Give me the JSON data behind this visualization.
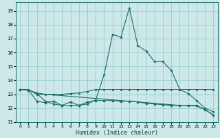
{
  "xlabel": "Humidex (Indice chaleur)",
  "bg_color": "#cce8e8",
  "grid_color": "#99cccc",
  "line_color": "#1a6b6b",
  "xlim": [
    -0.5,
    23.5
  ],
  "ylim": [
    11,
    19.6
  ],
  "yticks": [
    11,
    12,
    13,
    14,
    15,
    16,
    17,
    18,
    19
  ],
  "xticks": [
    0,
    1,
    2,
    3,
    4,
    5,
    6,
    7,
    8,
    9,
    10,
    11,
    12,
    13,
    14,
    15,
    16,
    17,
    18,
    19,
    20,
    21,
    22,
    23
  ],
  "line1_x": [
    0,
    1,
    2,
    3,
    4,
    5,
    6,
    7,
    8,
    9,
    10,
    11,
    12,
    13,
    14,
    15,
    16,
    17,
    18,
    19,
    20,
    21,
    22,
    23
  ],
  "line1_y": [
    13.35,
    13.3,
    13.05,
    12.5,
    12.3,
    12.2,
    12.2,
    12.2,
    12.3,
    12.6,
    14.4,
    17.3,
    17.1,
    19.2,
    16.5,
    16.1,
    15.35,
    15.35,
    14.7,
    13.35,
    13.05,
    12.55,
    12.0,
    11.75
  ],
  "line2_x": [
    0,
    1,
    2,
    3,
    4,
    5,
    6,
    7,
    8,
    9,
    10,
    11,
    12,
    13,
    14,
    15,
    16,
    17,
    18,
    19,
    20,
    21,
    22,
    23
  ],
  "line2_y": [
    13.35,
    13.35,
    13.0,
    13.0,
    13.0,
    13.0,
    13.05,
    13.1,
    13.2,
    13.35,
    13.35,
    13.35,
    13.35,
    13.35,
    13.35,
    13.35,
    13.35,
    13.35,
    13.35,
    13.35,
    13.35,
    13.35,
    13.35,
    13.35
  ],
  "line3_x": [
    0,
    1,
    2,
    3,
    4,
    5,
    6,
    7,
    8,
    9,
    10,
    11,
    12,
    13,
    14,
    15,
    16,
    17,
    18,
    19,
    20,
    21,
    22,
    23
  ],
  "line3_y": [
    13.35,
    13.3,
    12.5,
    12.4,
    12.5,
    12.2,
    12.45,
    12.2,
    12.45,
    12.55,
    12.55,
    12.55,
    12.5,
    12.5,
    12.45,
    12.35,
    12.3,
    12.25,
    12.2,
    12.2,
    12.2,
    12.2,
    11.9,
    11.5
  ],
  "line4_x": [
    0,
    1,
    2,
    3,
    4,
    5,
    6,
    7,
    8,
    9,
    10,
    11,
    12,
    13,
    14,
    15,
    16,
    17,
    18,
    19,
    20,
    21,
    22,
    23
  ],
  "line4_y": [
    13.35,
    13.3,
    13.1,
    13.0,
    12.95,
    12.9,
    12.85,
    12.8,
    12.75,
    12.7,
    12.65,
    12.6,
    12.55,
    12.5,
    12.45,
    12.4,
    12.35,
    12.3,
    12.25,
    12.2,
    12.2,
    12.15,
    11.9,
    11.5
  ]
}
